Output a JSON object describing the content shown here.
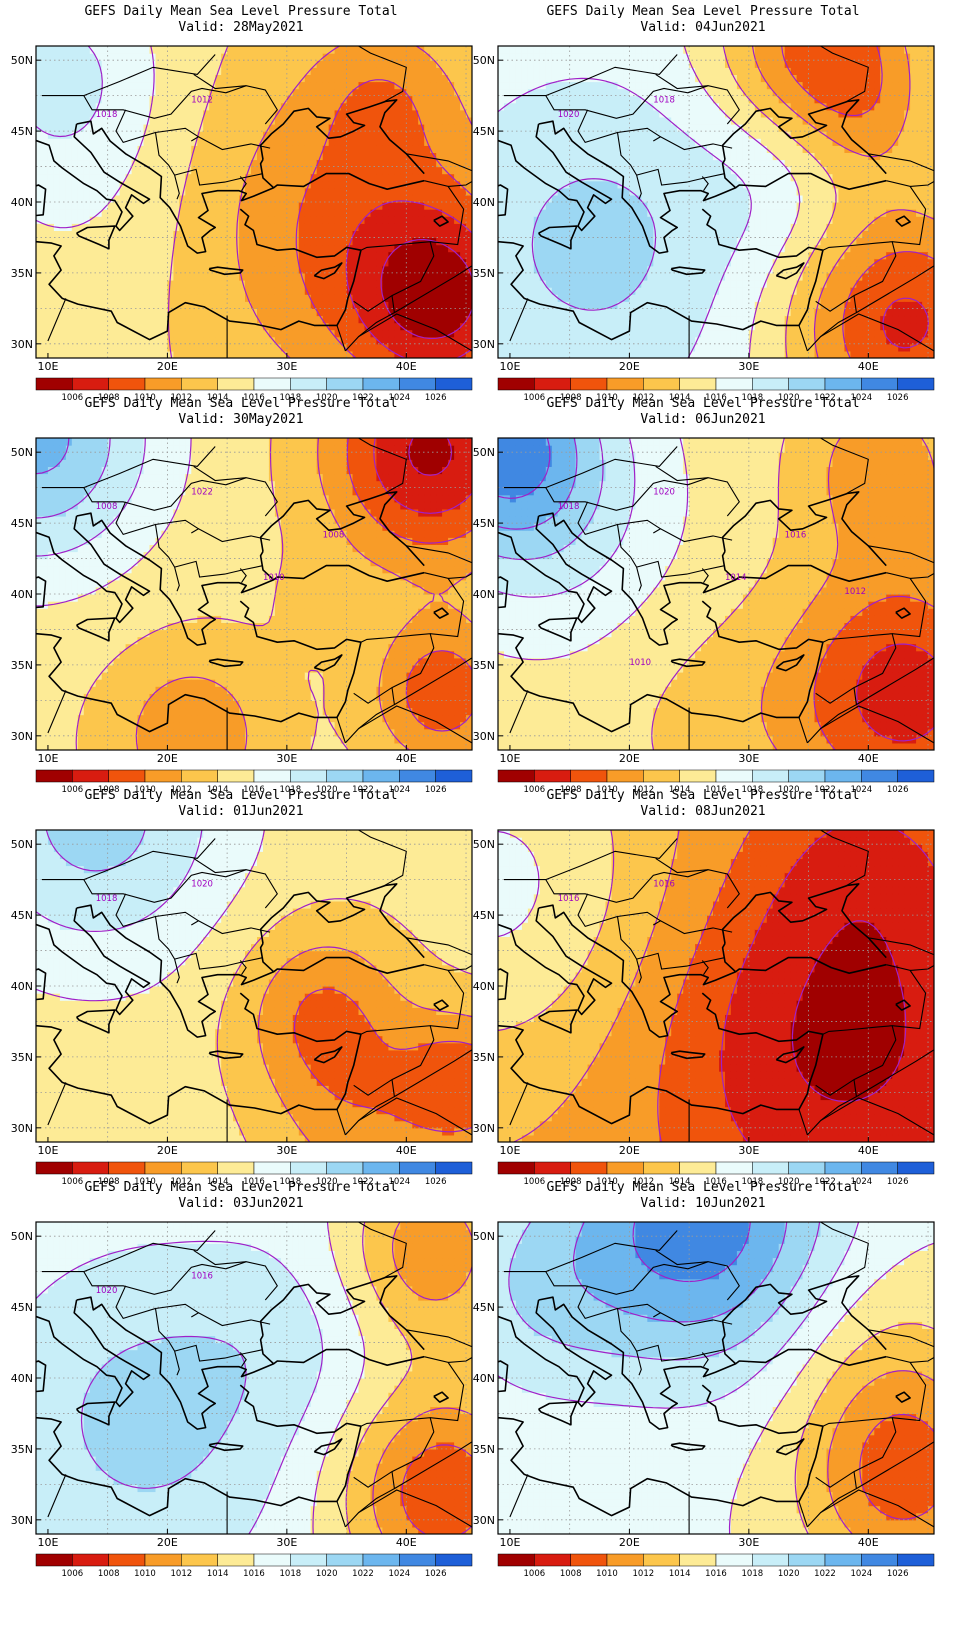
{
  "title": "GEFS Daily Mean Sea Level Pressure Total",
  "valid_prefix": "Valid:",
  "panels": [
    {
      "valid": "28May2021",
      "column": "left",
      "row": 0,
      "highs": [],
      "lows": [
        "east",
        "south-east"
      ],
      "isobar_labels": [
        "1012",
        "1018"
      ]
    },
    {
      "valid": "04Jun2021",
      "column": "right",
      "row": 0,
      "highs": [
        "west"
      ],
      "lows": [
        "north",
        "south-east"
      ],
      "isobar_labels": [
        "1018",
        "1020"
      ]
    },
    {
      "valid": "30May2021",
      "column": "left",
      "row": 1,
      "highs": [
        "north-west"
      ],
      "lows": [
        "north-east",
        "south-east"
      ],
      "isobar_labels": [
        "1022",
        "1008",
        "1008",
        "1010"
      ]
    },
    {
      "valid": "06Jun2021",
      "column": "right",
      "row": 1,
      "highs": [
        "north-west"
      ],
      "lows": [
        "south-east"
      ],
      "isobar_labels": [
        "1020",
        "1018",
        "1016",
        "1014",
        "1012",
        "1010"
      ]
    },
    {
      "valid": "01Jun2021",
      "column": "left",
      "row": 2,
      "highs": [
        "north"
      ],
      "lows": [
        "east",
        "south-east"
      ],
      "isobar_labels": [
        "1020",
        "1018"
      ]
    },
    {
      "valid": "08Jun2021",
      "column": "right",
      "row": 2,
      "highs": [
        "west"
      ],
      "lows": [
        "east"
      ],
      "isobar_labels": [
        "1016",
        "1016"
      ]
    },
    {
      "valid": "03Jun2021",
      "column": "left",
      "row": 3,
      "highs": [
        "west"
      ],
      "lows": [
        "north-east",
        "south-east"
      ],
      "isobar_labels": [
        "1016",
        "1020"
      ]
    },
    {
      "valid": "10Jun2021",
      "column": "right",
      "row": 3,
      "highs": [
        "north"
      ],
      "lows": [
        "south-east"
      ],
      "isobar_labels": []
    }
  ],
  "lat_labels": [
    "50N",
    "45N",
    "40N",
    "35N",
    "30N"
  ],
  "lon_labels": [
    "10E",
    "20E",
    "30E",
    "40E"
  ],
  "colorbar": {
    "levels": [
      "1006",
      "1008",
      "1010",
      "1012",
      "1014",
      "1016",
      "1018",
      "1020",
      "1022",
      "1024",
      "1026"
    ],
    "colors": [
      "#a00000",
      "#d81c10",
      "#f0540c",
      "#f89c28",
      "#fcc64c",
      "#fdeb96",
      "#eafbfb",
      "#c8eef8",
      "#9cd7f3",
      "#6cb6ee",
      "#4088e2",
      "#1e5fd8"
    ]
  },
  "colors": {
    "isobar": "#a020c8",
    "coast": "#000000",
    "grid": "#9a9a9a"
  }
}
